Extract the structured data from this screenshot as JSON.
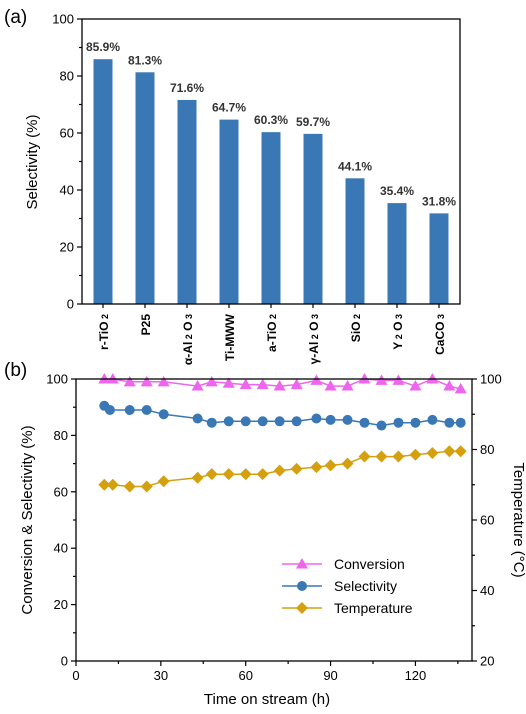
{
  "chart_data": [
    {
      "panel": "(a)",
      "type": "bar",
      "ylabel": "Selectivity (%)",
      "ylim": [
        0,
        100
      ],
      "yticks": [
        0,
        20,
        40,
        60,
        80,
        100
      ],
      "bar_color": "#3a78b5",
      "categories": [
        {
          "base": "r-TiO",
          "sub": "2"
        },
        {
          "base": "P25",
          "sub": ""
        },
        {
          "base": "α-Al",
          "sub": "2",
          "base2": "O",
          "sub2": "3"
        },
        {
          "base": "Ti-MWW",
          "sub": ""
        },
        {
          "base": "a-TiO",
          "sub": "2"
        },
        {
          "base": "γ-Al",
          "sub": "2",
          "base2": "O",
          "sub2": "3"
        },
        {
          "base": "SiO",
          "sub": "2"
        },
        {
          "base": "Y",
          "sub": "2",
          "base2": "O",
          "sub2": "3"
        },
        {
          "base": "CaCO",
          "sub": "3"
        }
      ],
      "values": [
        85.9,
        81.3,
        71.6,
        64.7,
        60.3,
        59.7,
        44.1,
        35.4,
        31.8
      ],
      "data_labels": [
        "85.9%",
        "81.3%",
        "71.6%",
        "64.7%",
        "60.3%",
        "59.7%",
        "44.1%",
        "35.4%",
        "31.8%"
      ]
    },
    {
      "panel": "(b)",
      "type": "line",
      "xlabel": "Time on stream (h)",
      "ylabel": "Conversion & Selectivity (%)",
      "y2label": "Temperature (°C)",
      "xlim": [
        0,
        140
      ],
      "xticks": [
        0,
        30,
        60,
        90,
        120
      ],
      "ylim": [
        0,
        100
      ],
      "yticks": [
        0,
        20,
        40,
        60,
        80,
        100
      ],
      "y2lim": [
        20,
        100
      ],
      "y2ticks": [
        20,
        40,
        60,
        80,
        100
      ],
      "legend_position": "lower-center",
      "series": [
        {
          "name": "Conversion",
          "axis": "left",
          "marker": "triangle",
          "color": "#ee66ee",
          "x": [
            10,
            13,
            19,
            25,
            31,
            43,
            48,
            54,
            60,
            66,
            72,
            78,
            85,
            90,
            96,
            102,
            108,
            114,
            120,
            126,
            132,
            136
          ],
          "y": [
            100,
            100,
            99,
            99,
            99,
            97.5,
            99,
            98.5,
            98,
            98,
            97.5,
            98,
            99.5,
            97.5,
            97.5,
            100,
            99.5,
            99.5,
            97.5,
            100,
            97.5,
            96.5
          ]
        },
        {
          "name": "Selectivity",
          "axis": "left",
          "marker": "circle",
          "color": "#3a78b5",
          "x": [
            10,
            12,
            19,
            25,
            31,
            43,
            48,
            54,
            60,
            66,
            72,
            78,
            85,
            90,
            96,
            102,
            108,
            114,
            120,
            126,
            132,
            136
          ],
          "y": [
            90.5,
            89,
            89,
            89,
            87.5,
            86,
            84.5,
            85,
            85,
            85,
            85,
            85,
            86,
            85.5,
            85.5,
            84.5,
            83.5,
            84.5,
            84.5,
            85.5,
            84.5,
            84.5
          ]
        },
        {
          "name": "Temperature",
          "axis": "right",
          "marker": "diamond",
          "color": "#d4a010",
          "x": [
            10,
            13,
            19,
            25,
            31,
            43,
            48,
            54,
            60,
            66,
            72,
            78,
            85,
            90,
            96,
            102,
            108,
            114,
            120,
            126,
            132,
            136
          ],
          "y": [
            70,
            70,
            69.5,
            69.5,
            71,
            72,
            73,
            73,
            73,
            73,
            74,
            74.5,
            75,
            75.5,
            76,
            78,
            78,
            78,
            78.5,
            79,
            79.5,
            79.5
          ]
        }
      ]
    }
  ]
}
